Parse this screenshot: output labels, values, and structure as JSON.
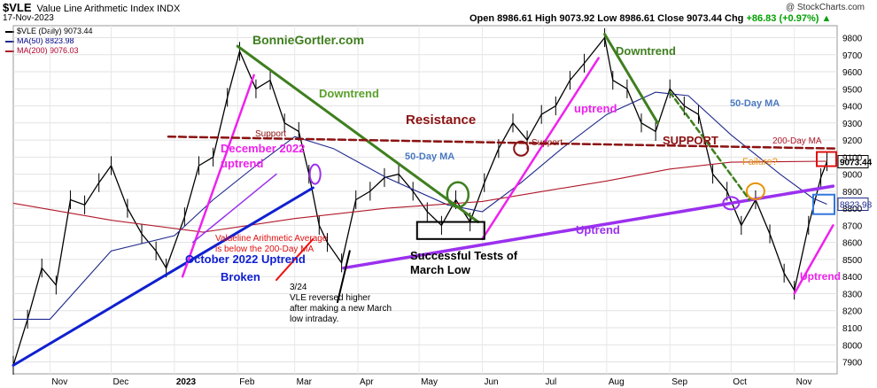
{
  "header": {
    "symbol": "$VLE",
    "name": "Value Line Arithmetic Index  INDX",
    "date": "17-Nov-2023",
    "credit": "@ StockCharts.com",
    "ohlc": "Open 8986.61  High 9073.92  Low 8986.61  Close 9073.44  Chg",
    "change": "+86.83 (+0.97%) ▲"
  },
  "legend": {
    "price": "$VLE (Daily) 9073.44",
    "ma50": "MA(50) 8823.98",
    "ma200": "MA(200) 9076.03"
  },
  "colors": {
    "price": "#000000",
    "ma50": "#1f2a8c",
    "ma200": "#b0192a",
    "green": "#3f7f1f",
    "magenta": "#ee22ee",
    "blue": "#1020d0",
    "purple": "#9b30ee",
    "resistance": "#8b1111"
  },
  "chart_data": {
    "type": "line",
    "title": "",
    "xlabel": "",
    "ylabel": "",
    "ylim": [
      7830,
      9870
    ],
    "yticks": [
      7900,
      8000,
      8100,
      8200,
      8300,
      8400,
      8500,
      8600,
      8700,
      8800,
      8900,
      9000,
      9100,
      9200,
      9300,
      9400,
      9500,
      9600,
      9700,
      9800
    ],
    "xticks": [
      {
        "label": "Nov",
        "date": "2022-11-01"
      },
      {
        "label": "Dec",
        "date": "2022-12-01"
      },
      {
        "label": "2023",
        "date": "2023-01-01"
      },
      {
        "label": "Feb",
        "date": "2023-02-01"
      },
      {
        "label": "Mar",
        "date": "2023-03-01"
      },
      {
        "label": "Apr",
        "date": "2023-04-01"
      },
      {
        "label": "May",
        "date": "2023-05-01"
      },
      {
        "label": "Jun",
        "date": "2023-06-01"
      },
      {
        "label": "Jul",
        "date": "2023-07-01"
      },
      {
        "label": "Aug",
        "date": "2023-08-01"
      },
      {
        "label": "Sep",
        "date": "2023-09-01"
      },
      {
        "label": "Oct",
        "date": "2023-10-01"
      },
      {
        "label": "Nov",
        "date": "2023-11-01"
      }
    ],
    "xlim": [
      "2022-10-14",
      "2023-11-22"
    ],
    "series": [
      {
        "name": "$VLE (Daily)",
        "kind": "price",
        "points": [
          [
            "2022-10-14",
            7880
          ],
          [
            "2022-10-21",
            8150
          ],
          [
            "2022-10-28",
            8450
          ],
          [
            "2022-11-04",
            8350
          ],
          [
            "2022-11-11",
            8850
          ],
          [
            "2022-11-18",
            8820
          ],
          [
            "2022-11-25",
            8950
          ],
          [
            "2022-12-01",
            9050
          ],
          [
            "2022-12-09",
            8800
          ],
          [
            "2022-12-16",
            8650
          ],
          [
            "2022-12-23",
            8550
          ],
          [
            "2022-12-28",
            8450
          ],
          [
            "2023-01-06",
            8750
          ],
          [
            "2023-01-13",
            9050
          ],
          [
            "2023-01-20",
            9100
          ],
          [
            "2023-01-27",
            9450
          ],
          [
            "2023-02-02",
            9720
          ],
          [
            "2023-02-10",
            9500
          ],
          [
            "2023-02-17",
            9550
          ],
          [
            "2023-02-24",
            9300
          ],
          [
            "2023-03-03",
            9250
          ],
          [
            "2023-03-08",
            9000
          ],
          [
            "2023-03-13",
            8700
          ],
          [
            "2023-03-17",
            8600
          ],
          [
            "2023-03-24",
            8480
          ],
          [
            "2023-03-31",
            8850
          ],
          [
            "2023-04-07",
            8900
          ],
          [
            "2023-04-14",
            8980
          ],
          [
            "2023-04-21",
            9000
          ],
          [
            "2023-04-28",
            8900
          ],
          [
            "2023-05-05",
            8780
          ],
          [
            "2023-05-12",
            8700
          ],
          [
            "2023-05-19",
            8850
          ],
          [
            "2023-05-26",
            8720
          ],
          [
            "2023-06-02",
            8950
          ],
          [
            "2023-06-09",
            9150
          ],
          [
            "2023-06-16",
            9300
          ],
          [
            "2023-06-23",
            9200
          ],
          [
            "2023-06-30",
            9350
          ],
          [
            "2023-07-07",
            9400
          ],
          [
            "2023-07-14",
            9550
          ],
          [
            "2023-07-21",
            9650
          ],
          [
            "2023-07-31",
            9800
          ],
          [
            "2023-08-04",
            9550
          ],
          [
            "2023-08-11",
            9500
          ],
          [
            "2023-08-18",
            9300
          ],
          [
            "2023-08-25",
            9250
          ],
          [
            "2023-09-01",
            9500
          ],
          [
            "2023-09-08",
            9400
          ],
          [
            "2023-09-15",
            9350
          ],
          [
            "2023-09-22",
            9000
          ],
          [
            "2023-09-29",
            8900
          ],
          [
            "2023-10-06",
            8700
          ],
          [
            "2023-10-13",
            8850
          ],
          [
            "2023-10-20",
            8650
          ],
          [
            "2023-10-27",
            8420
          ],
          [
            "2023-11-01",
            8320
          ],
          [
            "2023-11-08",
            8700
          ],
          [
            "2023-11-14",
            8980
          ],
          [
            "2023-11-17",
            9073
          ]
        ]
      },
      {
        "name": "MA(50)",
        "kind": "ma50",
        "points": [
          [
            "2022-10-14",
            8150
          ],
          [
            "2022-11-01",
            8150
          ],
          [
            "2022-12-01",
            8550
          ],
          [
            "2023-01-01",
            8640
          ],
          [
            "2023-01-20",
            8850
          ],
          [
            "2023-02-10",
            9050
          ],
          [
            "2023-03-01",
            9220
          ],
          [
            "2023-03-20",
            9150
          ],
          [
            "2023-04-15",
            8980
          ],
          [
            "2023-05-15",
            8820
          ],
          [
            "2023-06-01",
            8780
          ],
          [
            "2023-06-20",
            8950
          ],
          [
            "2023-07-10",
            9150
          ],
          [
            "2023-08-01",
            9350
          ],
          [
            "2023-08-25",
            9480
          ],
          [
            "2023-09-10",
            9460
          ],
          [
            "2023-10-01",
            9230
          ],
          [
            "2023-10-25",
            9000
          ],
          [
            "2023-11-10",
            8860
          ],
          [
            "2023-11-17",
            8824
          ]
        ]
      },
      {
        "name": "MA(200)",
        "kind": "ma200",
        "points": [
          [
            "2022-10-14",
            8830
          ],
          [
            "2022-12-01",
            8730
          ],
          [
            "2023-01-15",
            8660
          ],
          [
            "2023-03-01",
            8740
          ],
          [
            "2023-04-15",
            8800
          ],
          [
            "2023-06-01",
            8840
          ],
          [
            "2023-07-01",
            8900
          ],
          [
            "2023-08-01",
            8960
          ],
          [
            "2023-09-01",
            9030
          ],
          [
            "2023-10-01",
            9070
          ],
          [
            "2023-11-17",
            9076
          ]
        ]
      }
    ],
    "price_label": "9073.44",
    "ma50_label": "8823.98",
    "annotations": {
      "watermark": "BonnieGortler.com",
      "downtrend": "Downtrend",
      "downtrend2": "Downtrend",
      "support": "Support",
      "support2": "Support",
      "support_caps": "SUPPORT",
      "resistance": "Resistance",
      "dec_uptrend_1": "December 2022",
      "dec_uptrend_2": "uptrend",
      "ma50_label_1": "50-Day MA",
      "ma50_label_2": "50-Day MA",
      "ma200_label": "200-Day MA",
      "uptrend_mid": "uptrend",
      "uptrend_bottom": "Uptrend",
      "uptrend_right": "Uptrend",
      "failure": "Failure?",
      "below_ma_1": "Valueline Arithmetic Average",
      "below_ma_2": "is below the 200-Day MA",
      "oct_uptrend": "October 2022 Uptrend",
      "broken": "Broken",
      "tests_1": "Successful Tests of",
      "tests_2": "March Low",
      "note_1": "3/24",
      "note_2": "VLE reversed higher",
      "note_3": "after making a new March",
      "note_4": "low intraday."
    }
  }
}
